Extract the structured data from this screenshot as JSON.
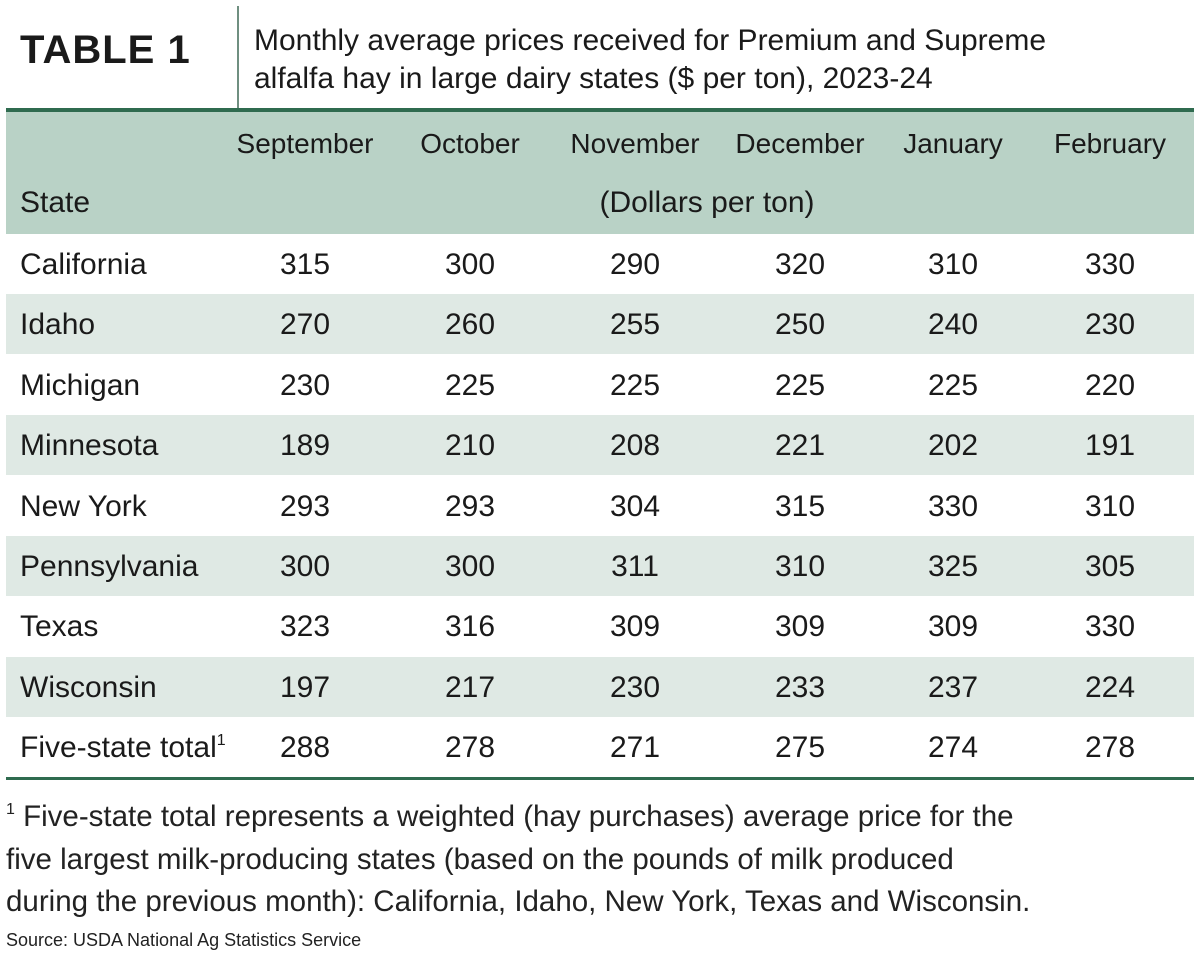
{
  "header": {
    "label": "TABLE 1",
    "title_lines": [
      "Monthly average prices received for Premium and Supreme",
      "alfalfa hay in large dairy states ($ per ton), 2023-24"
    ]
  },
  "table": {
    "columns": [
      "State",
      "September",
      "October",
      "November",
      "December",
      "January",
      "February"
    ],
    "unit": "(Dollars per ton)",
    "rows": [
      [
        "California",
        315,
        300,
        290,
        320,
        310,
        330
      ],
      [
        "Idaho",
        270,
        260,
        255,
        250,
        240,
        230
      ],
      [
        "Michigan",
        230,
        225,
        225,
        225,
        225,
        220
      ],
      [
        "Minnesota",
        189,
        210,
        208,
        221,
        202,
        191
      ],
      [
        "New York",
        293,
        293,
        304,
        315,
        330,
        310
      ],
      [
        "Pennsylvania",
        300,
        300,
        311,
        310,
        325,
        305
      ],
      [
        "Texas",
        323,
        316,
        309,
        309,
        309,
        330
      ],
      [
        "Wisconsin",
        197,
        217,
        230,
        233,
        237,
        224
      ],
      [
        "Five-state total",
        288,
        278,
        271,
        275,
        274,
        278
      ]
    ],
    "total_row_marker": "1"
  },
  "footnote": {
    "marker": "1",
    "lines": [
      "Five-state total represents a weighted (hay purchases) average price for the",
      "five largest milk-producing states (based on the pounds of milk produced",
      "during the previous month): California, Idaho, New York, Texas and Wisconsin."
    ]
  },
  "source": "Source: USDA National Ag Statistics Service"
}
